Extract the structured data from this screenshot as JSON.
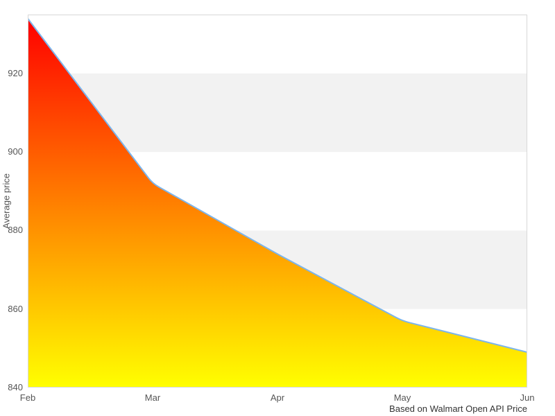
{
  "chart_data": {
    "type": "area",
    "title": "",
    "x": [
      "Feb",
      "Mar",
      "Apr",
      "May",
      "Jun"
    ],
    "series": [
      {
        "name": "Average price",
        "values": [
          934,
          892,
          874,
          857,
          849
        ]
      }
    ],
    "xlabel": "",
    "ylabel": "Average price",
    "caption": "Based on Walmart Open API Price",
    "ylim": [
      840,
      935
    ],
    "yticks": [
      840,
      860,
      880,
      900,
      920
    ],
    "plot_bands": [
      {
        "from": 900,
        "to": 920
      },
      {
        "from": 860,
        "to": 880
      }
    ],
    "legend": "none",
    "grid": "alternating-bands",
    "colors": {
      "band": "#f2f2f2",
      "plot_border": "#d8d8d8",
      "line": "#7cb5ec",
      "area_gradient_top": "#ff0000",
      "area_gradient_bottom": "#ffff00",
      "axis_label": "#555555",
      "caption_text": "#333333"
    }
  }
}
